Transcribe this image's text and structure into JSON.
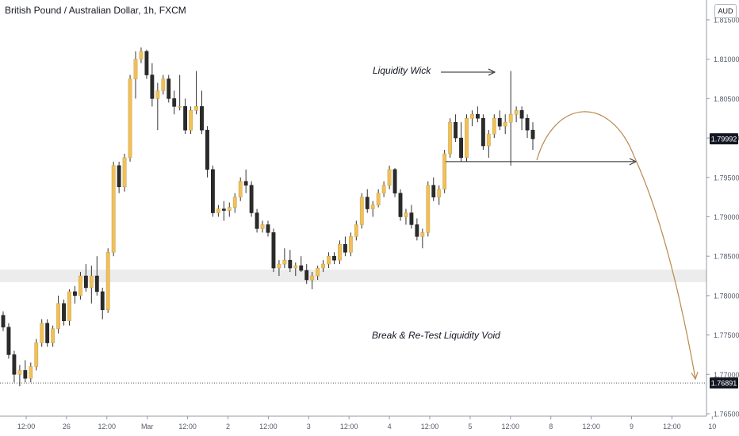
{
  "header": {
    "title": "British Pound / Australian Dollar, 1h, FXCM",
    "currency": "AUD"
  },
  "colors": {
    "bull": "#f0c05a",
    "bear": "#2b2b2b",
    "wick": "#333333",
    "arc": "#b8894a",
    "zone": "#ececec",
    "axis_text": "#555b6b"
  },
  "annotations": {
    "liquidity_wick": "Liquidity Wick",
    "break_retest": "Break & Re-Test Liquidity Void"
  },
  "chart_data": {
    "type": "candlestick",
    "title": "British Pound / Australian Dollar, 1h, FXCM",
    "symbol": "GBPAUD",
    "timeframe": "1h",
    "source": "FXCM",
    "ylim": [
      1.765,
      1.8155
    ],
    "y_ticks": [
      "1.81500",
      "1.81000",
      "1.80500",
      "1.80000",
      "1.79500",
      "1.79000",
      "1.78500",
      "1.78000",
      "1.77500",
      "1.77000",
      "1.76500"
    ],
    "x_ticks": [
      "12:00",
      "26",
      "12:00",
      "Mar",
      "12:00",
      "2",
      "12:00",
      "3",
      "12:00",
      "4",
      "12:00",
      "5",
      "12:00",
      "8",
      "12:00",
      "9",
      "12:00",
      "10"
    ],
    "price_labels": {
      "current": "1.79992",
      "target": "1.76891"
    },
    "zone": [
      1.7817,
      1.7833
    ],
    "target_level": 1.76891,
    "liquidity_level": 1.797,
    "projection_peak": 1.8033,
    "projection_end": 1.7695,
    "grid": false,
    "candles": [
      [
        1.7775,
        1.778,
        1.7755,
        1.776
      ],
      [
        1.776,
        1.7765,
        1.772,
        1.7725
      ],
      [
        1.7725,
        1.773,
        1.769,
        1.77
      ],
      [
        1.77,
        1.7712,
        1.7685,
        1.7705
      ],
      [
        1.7705,
        1.7718,
        1.769,
        1.7695
      ],
      [
        1.7695,
        1.7715,
        1.769,
        1.771
      ],
      [
        1.771,
        1.7745,
        1.7705,
        1.774
      ],
      [
        1.774,
        1.777,
        1.7735,
        1.7765
      ],
      [
        1.7765,
        1.777,
        1.7735,
        1.774
      ],
      [
        1.774,
        1.7762,
        1.7735,
        1.7758
      ],
      [
        1.7758,
        1.78,
        1.7752,
        1.779
      ],
      [
        1.779,
        1.7795,
        1.7762,
        1.7768
      ],
      [
        1.7768,
        1.7808,
        1.7762,
        1.7805
      ],
      [
        1.7805,
        1.7812,
        1.779,
        1.78
      ],
      [
        1.78,
        1.783,
        1.7795,
        1.7825
      ],
      [
        1.7825,
        1.784,
        1.7805,
        1.781
      ],
      [
        1.781,
        1.7838,
        1.779,
        1.7825
      ],
      [
        1.7825,
        1.785,
        1.78,
        1.7805
      ],
      [
        1.7805,
        1.781,
        1.777,
        1.7782
      ],
      [
        1.7782,
        1.786,
        1.7778,
        1.7855
      ],
      [
        1.7855,
        1.797,
        1.785,
        1.7965
      ],
      [
        1.7965,
        1.797,
        1.793,
        1.7938
      ],
      [
        1.7938,
        1.798,
        1.7932,
        1.7975
      ],
      [
        1.7975,
        1.808,
        1.797,
        1.8075
      ],
      [
        1.8075,
        1.811,
        1.805,
        1.81
      ],
      [
        1.81,
        1.8115,
        1.8095,
        1.811
      ],
      [
        1.811,
        1.8112,
        1.8075,
        1.808
      ],
      [
        1.808,
        1.8095,
        1.804,
        1.805
      ],
      [
        1.805,
        1.807,
        1.801,
        1.806
      ],
      [
        1.806,
        1.808,
        1.8055,
        1.8075
      ],
      [
        1.8075,
        1.808,
        1.8045,
        1.805
      ],
      [
        1.805,
        1.806,
        1.803,
        1.804
      ],
      [
        1.804,
        1.808,
        1.8035,
        1.804
      ],
      [
        1.804,
        1.805,
        1.8005,
        1.801
      ],
      [
        1.801,
        1.804,
        1.8005,
        1.8035
      ],
      [
        1.8035,
        1.8085,
        1.803,
        1.804
      ],
      [
        1.804,
        1.806,
        1.8005,
        1.801
      ],
      [
        1.801,
        1.8015,
        1.795,
        1.796
      ],
      [
        1.796,
        1.7965,
        1.79,
        1.7905
      ],
      [
        1.7905,
        1.7915,
        1.79,
        1.791
      ],
      [
        1.791,
        1.792,
        1.7895,
        1.7908
      ],
      [
        1.7908,
        1.7918,
        1.79,
        1.7912
      ],
      [
        1.7912,
        1.793,
        1.7905,
        1.7925
      ],
      [
        1.7925,
        1.795,
        1.792,
        1.7945
      ],
      [
        1.7945,
        1.796,
        1.793,
        1.794
      ],
      [
        1.794,
        1.7945,
        1.79,
        1.7905
      ],
      [
        1.7905,
        1.791,
        1.788,
        1.7885
      ],
      [
        1.7885,
        1.7895,
        1.788,
        1.789
      ],
      [
        1.789,
        1.7895,
        1.7875,
        1.788
      ],
      [
        1.788,
        1.7885,
        1.783,
        1.7835
      ],
      [
        1.7835,
        1.7845,
        1.7825,
        1.784
      ],
      [
        1.784,
        1.786,
        1.7835,
        1.7845
      ],
      [
        1.7845,
        1.7858,
        1.783,
        1.7835
      ],
      [
        1.7835,
        1.7842,
        1.7825,
        1.7838
      ],
      [
        1.7838,
        1.785,
        1.783,
        1.7832
      ],
      [
        1.7832,
        1.784,
        1.7815,
        1.782
      ],
      [
        1.782,
        1.783,
        1.7808,
        1.7825
      ],
      [
        1.7825,
        1.7838,
        1.782,
        1.7835
      ],
      [
        1.7835,
        1.7845,
        1.783,
        1.784
      ],
      [
        1.784,
        1.7855,
        1.7835,
        1.785
      ],
      [
        1.785,
        1.7855,
        1.784,
        1.7845
      ],
      [
        1.7845,
        1.787,
        1.784,
        1.7865
      ],
      [
        1.7865,
        1.7875,
        1.785,
        1.7855
      ],
      [
        1.7855,
        1.788,
        1.785,
        1.7875
      ],
      [
        1.7875,
        1.7895,
        1.787,
        1.789
      ],
      [
        1.789,
        1.793,
        1.7885,
        1.7925
      ],
      [
        1.7925,
        1.7935,
        1.7905,
        1.791
      ],
      [
        1.791,
        1.792,
        1.79,
        1.7915
      ],
      [
        1.7915,
        1.7935,
        1.7912,
        1.793
      ],
      [
        1.793,
        1.7945,
        1.7925,
        1.794
      ],
      [
        1.794,
        1.7965,
        1.7935,
        1.796
      ],
      [
        1.796,
        1.7962,
        1.7925,
        1.793
      ],
      [
        1.793,
        1.7935,
        1.7895,
        1.79
      ],
      [
        1.79,
        1.791,
        1.789,
        1.7905
      ],
      [
        1.7905,
        1.7915,
        1.7885,
        1.789
      ],
      [
        1.789,
        1.7898,
        1.787,
        1.7875
      ],
      [
        1.7875,
        1.7885,
        1.786,
        1.788
      ],
      [
        1.788,
        1.7945,
        1.7875,
        1.794
      ],
      [
        1.794,
        1.795,
        1.792,
        1.7925
      ],
      [
        1.7925,
        1.794,
        1.7915,
        1.7935
      ],
      [
        1.7935,
        1.7985,
        1.793,
        1.798
      ],
      [
        1.798,
        1.8025,
        1.7975,
        1.802
      ],
      [
        1.802,
        1.803,
        1.7995,
        1.8
      ],
      [
        1.8,
        1.802,
        1.797,
        1.7975
      ],
      [
        1.7975,
        1.803,
        1.797,
        1.8025
      ],
      [
        1.8025,
        1.8035,
        1.8015,
        1.803
      ],
      [
        1.803,
        1.804,
        1.802,
        1.8025
      ],
      [
        1.8025,
        1.803,
        1.7985,
        1.799
      ],
      [
        1.799,
        1.801,
        1.7975,
        1.8005
      ],
      [
        1.8005,
        1.803,
        1.8,
        1.8025
      ],
      [
        1.8025,
        1.8035,
        1.801,
        1.8015
      ],
      [
        1.8015,
        1.803,
        1.8005,
        1.802
      ],
      [
        1.802,
        1.8085,
        1.7965,
        1.803
      ],
      [
        1.803,
        1.804,
        1.802,
        1.8035
      ],
      [
        1.8035,
        1.804,
        1.801,
        1.8025
      ],
      [
        1.8025,
        1.803,
        1.8,
        1.801
      ],
      [
        1.801,
        1.802,
        1.7985,
        1.7999
      ]
    ]
  }
}
